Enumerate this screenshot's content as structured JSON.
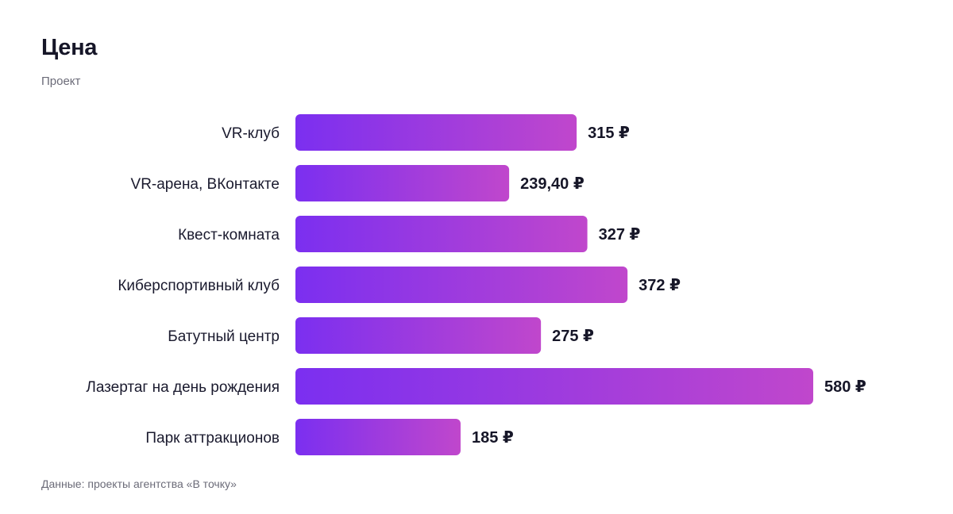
{
  "header": {
    "title": "Цена",
    "subtitle": "Проект"
  },
  "footer": {
    "source": "Данные: проекты агентства «В точку»"
  },
  "colors": {
    "bar_gradient_start": "#7B2FF0",
    "bar_gradient_end": "#C047CC",
    "text": "#161628",
    "muted": "#6b6b78"
  },
  "chart_data": {
    "type": "bar",
    "orientation": "horizontal",
    "title": "Цена",
    "subtitle": "Проект",
    "categories": [
      "VR-клуб",
      "VR-арена, ВКонтакте",
      "Квест-комната",
      "Киберспортивный клуб",
      "Батутный центр",
      "Лазертаг на день рождения",
      "Парк аттракционов"
    ],
    "values": [
      315,
      239.4,
      327,
      372,
      275,
      580,
      185
    ],
    "value_labels": [
      "315 ₽",
      "239,40 ₽",
      "327 ₽",
      "372 ₽",
      "275 ₽",
      "580 ₽",
      "185 ₽"
    ],
    "unit": "₽",
    "xlim": [
      0,
      580
    ],
    "grid": false,
    "legend": "none"
  }
}
